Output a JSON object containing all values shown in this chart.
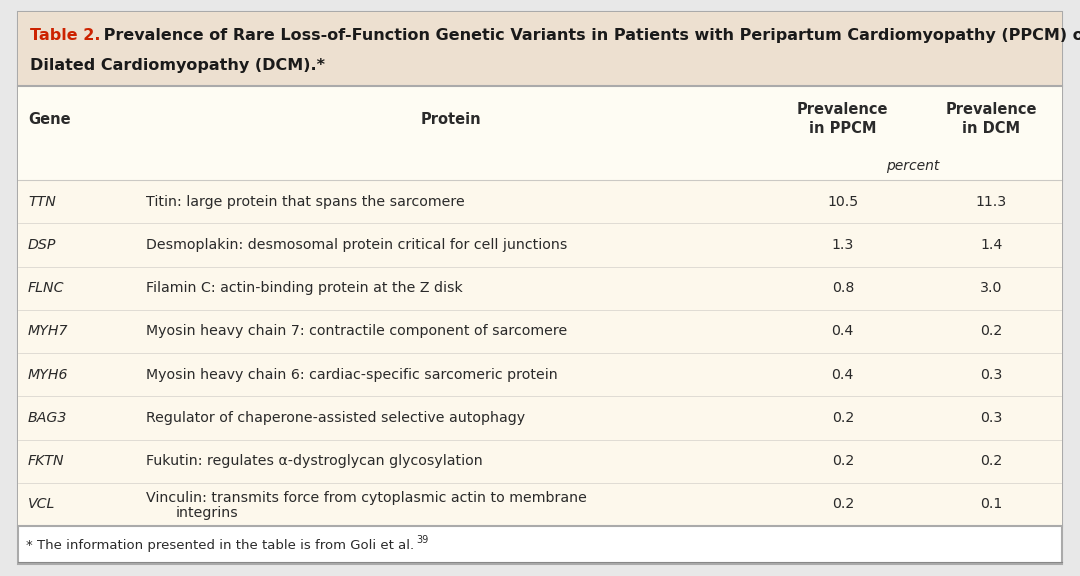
{
  "title_bold": "Table 2.",
  "title_line1_rest": " Prevalence of Rare Loss-of-Function Genetic Variants in Patients with Peripartum Cardiomyopathy (PPCM) or",
  "title_line2": "Dilated Cardiomyopathy (DCM).*",
  "col_headers": [
    "Gene",
    "Protein",
    "Prevalence\nin PPCM",
    "Prevalence\nin DCM"
  ],
  "percent_label": "percent",
  "rows": [
    [
      "TTN",
      "Titin: large protein that spans the sarcomere",
      "10.5",
      "11.3"
    ],
    [
      "DSP",
      "Desmoplakin: desmosomal protein critical for cell junctions",
      "1.3",
      "1.4"
    ],
    [
      "FLNC",
      "Filamin C: actin-binding protein at the Z disk",
      "0.8",
      "3.0"
    ],
    [
      "MYH7",
      "Myosin heavy chain 7: contractile component of sarcomere",
      "0.4",
      "0.2"
    ],
    [
      "MYH6",
      "Myosin heavy chain 6: cardiac-specific sarcomeric protein",
      "0.4",
      "0.3"
    ],
    [
      "BAG3",
      "Regulator of chaperone-assisted selective autophagy",
      "0.2",
      "0.3"
    ],
    [
      "FKTN",
      "Fukutin: regulates α-dystroglycan glycosylation",
      "0.2",
      "0.2"
    ],
    [
      "VCL",
      "Vinculin: transmits force from cytoplasmic actin to membrane\nintegrins",
      "0.2",
      "0.1"
    ]
  ],
  "footnote": "* The information presented in the table is from Goli et al.",
  "footnote_sup": "39",
  "table_bg": "#FEFCF3",
  "title_bg": "#EDE0D0",
  "row_bg": "#FDF8EC",
  "border_color": "#AAAAAA",
  "title_red": "#CC2200",
  "title_black": "#1A1A1A",
  "text_color": "#2A2A2A",
  "outer_bg": "#E8E8E8",
  "footnote_line_color": "#888888"
}
